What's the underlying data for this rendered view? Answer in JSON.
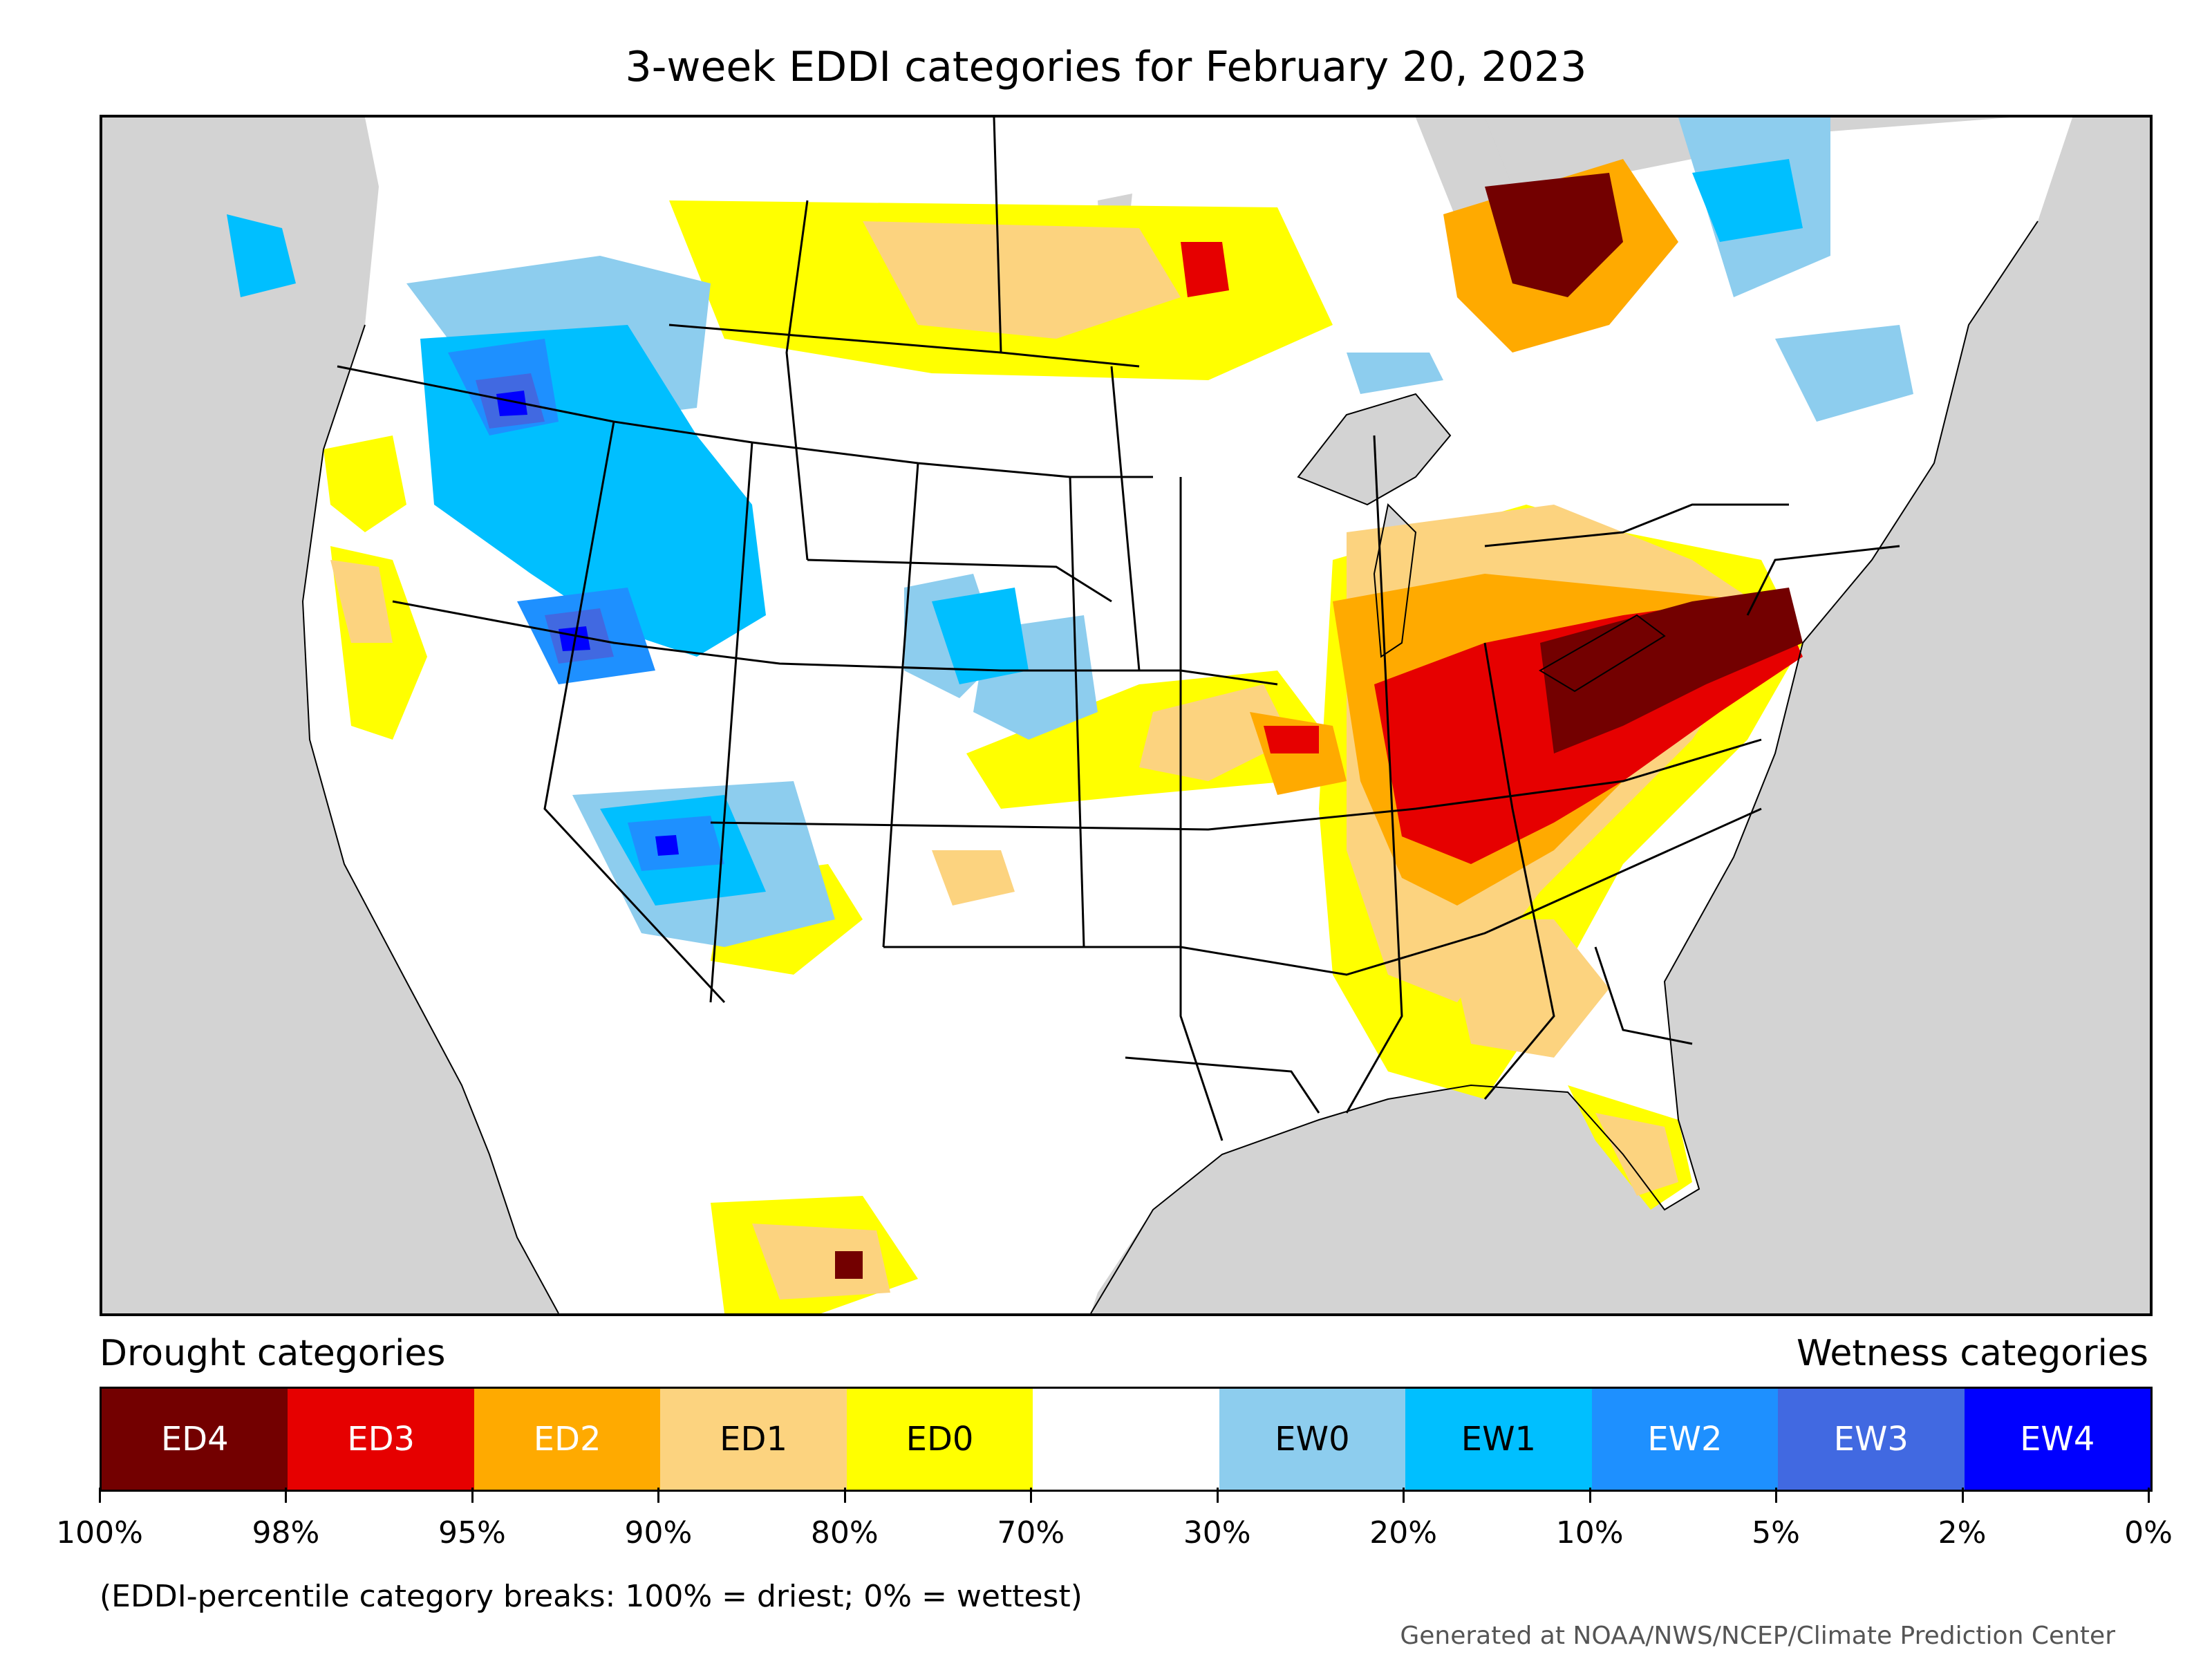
{
  "title": "3-week EDDI categories for February 20, 2023",
  "legend": {
    "left_heading": "Drought categories",
    "right_heading": "Wetness categories",
    "categories": [
      {
        "label": "ED4",
        "color": "#730000",
        "text_color": "#ffffff"
      },
      {
        "label": "ED3",
        "color": "#e60000",
        "text_color": "#ffffff"
      },
      {
        "label": "ED2",
        "color": "#ffaa00",
        "text_color": "#ffffff"
      },
      {
        "label": "ED1",
        "color": "#fcd37f",
        "text_color": "#000000"
      },
      {
        "label": "ED0",
        "color": "#ffff00",
        "text_color": "#000000"
      },
      {
        "label": "",
        "color": "#ffffff",
        "text_color": "#000000"
      },
      {
        "label": "EW0",
        "color": "#8dcdee",
        "text_color": "#000000"
      },
      {
        "label": "EW1",
        "color": "#00bfff",
        "text_color": "#000000"
      },
      {
        "label": "EW2",
        "color": "#1e90ff",
        "text_color": "#ffffff"
      },
      {
        "label": "EW3",
        "color": "#4169e1",
        "text_color": "#ffffff"
      },
      {
        "label": "EW4",
        "color": "#0000ff",
        "text_color": "#ffffff"
      }
    ],
    "breaks": [
      "100%",
      "98%",
      "95%",
      "90%",
      "80%",
      "70%",
      "30%",
      "20%",
      "10%",
      "5%",
      "2%",
      "0%"
    ]
  },
  "note": "(EDDI-percentile category breaks: 100% = driest; 0% = wettest)",
  "credit": "Generated at NOAA/NWS/NCEP/Climate Prediction Center",
  "map": {
    "background_color": "#d3d3d3",
    "land_color": "#ffffff"
  }
}
